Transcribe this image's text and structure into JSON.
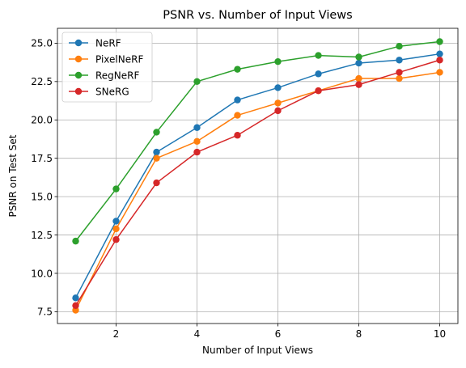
{
  "chart_data": {
    "type": "line",
    "title": "PSNR vs. Number of Input Views",
    "xlabel": "Number of Input Views",
    "ylabel": "PSNR on Test Set",
    "x": [
      1,
      2,
      3,
      4,
      5,
      6,
      7,
      8,
      9,
      10
    ],
    "xlim": [
      0.55,
      10.45
    ],
    "ylim": [
      6.73,
      25.97
    ],
    "xticks": [
      2,
      4,
      6,
      8,
      10
    ],
    "xtick_labels": [
      "2",
      "4",
      "6",
      "8",
      "10"
    ],
    "yticks": [
      7.5,
      10.0,
      12.5,
      15.0,
      17.5,
      20.0,
      22.5,
      25.0
    ],
    "ytick_labels": [
      "7.5",
      "10.0",
      "12.5",
      "15.0",
      "17.5",
      "20.0",
      "22.5",
      "25.0"
    ],
    "grid": true,
    "legend_position": "top-left",
    "series": [
      {
        "name": "NeRF",
        "color": "#1f77b4",
        "values": [
          8.4,
          13.4,
          17.9,
          19.5,
          21.3,
          22.1,
          23.0,
          23.7,
          23.9,
          24.3
        ]
      },
      {
        "name": "PixelNeRF",
        "color": "#ff7f0e",
        "values": [
          7.6,
          12.9,
          17.5,
          18.6,
          20.3,
          21.1,
          21.9,
          22.7,
          22.7,
          23.1
        ]
      },
      {
        "name": "RegNeRF",
        "color": "#2ca02c",
        "values": [
          12.1,
          15.5,
          19.2,
          22.5,
          23.3,
          23.8,
          24.2,
          24.1,
          24.8,
          25.1
        ]
      },
      {
        "name": "SNeRG",
        "color": "#d62728",
        "values": [
          7.9,
          12.2,
          15.9,
          17.9,
          19.0,
          20.6,
          21.9,
          22.3,
          23.1,
          23.9
        ]
      }
    ]
  }
}
